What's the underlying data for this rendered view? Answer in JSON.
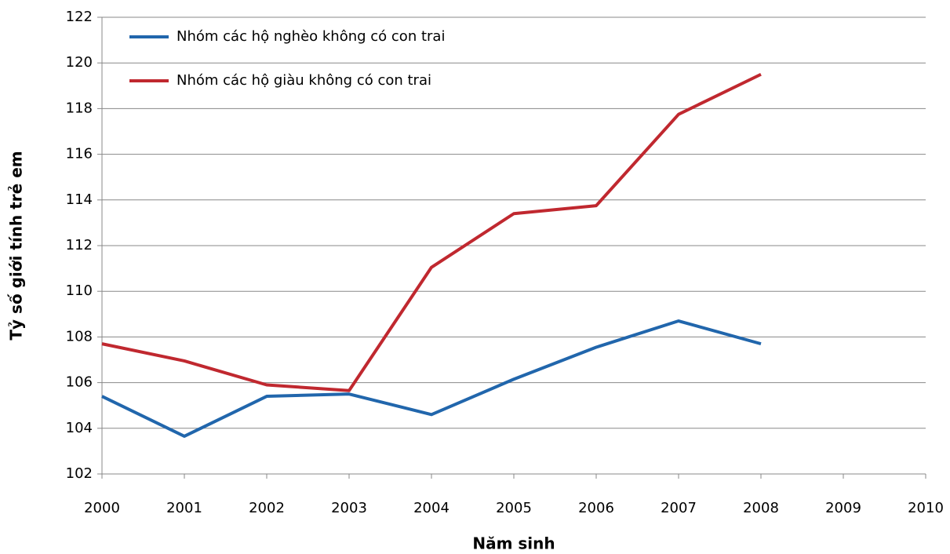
{
  "chart_data": {
    "type": "line",
    "x_label": "Năm sinh",
    "y_label": "Tỷ số giới tính trẻ em",
    "x": [
      2000,
      2001,
      2002,
      2003,
      2004,
      2005,
      2006,
      2007,
      2008
    ],
    "series": [
      {
        "name": "Nhóm các hộ nghèo không có con trai",
        "color": "#2166ac",
        "values": [
          105.4,
          103.65,
          105.4,
          105.5,
          104.6,
          106.15,
          107.55,
          108.7,
          107.7
        ]
      },
      {
        "name": "Nhóm các hộ giàu không có con trai",
        "color": "#c0282f",
        "values": [
          107.7,
          106.95,
          105.9,
          105.65,
          111.05,
          113.4,
          113.75,
          117.75,
          119.5
        ]
      }
    ],
    "xlim": [
      2000,
      2010
    ],
    "xticks": [
      2000,
      2001,
      2002,
      2003,
      2004,
      2005,
      2006,
      2007,
      2008,
      2009,
      2010
    ],
    "ylim": [
      102,
      122
    ],
    "yticks": [
      102,
      104,
      106,
      108,
      110,
      112,
      114,
      116,
      118,
      120,
      122
    ],
    "grid": true,
    "legend": "top-left"
  }
}
